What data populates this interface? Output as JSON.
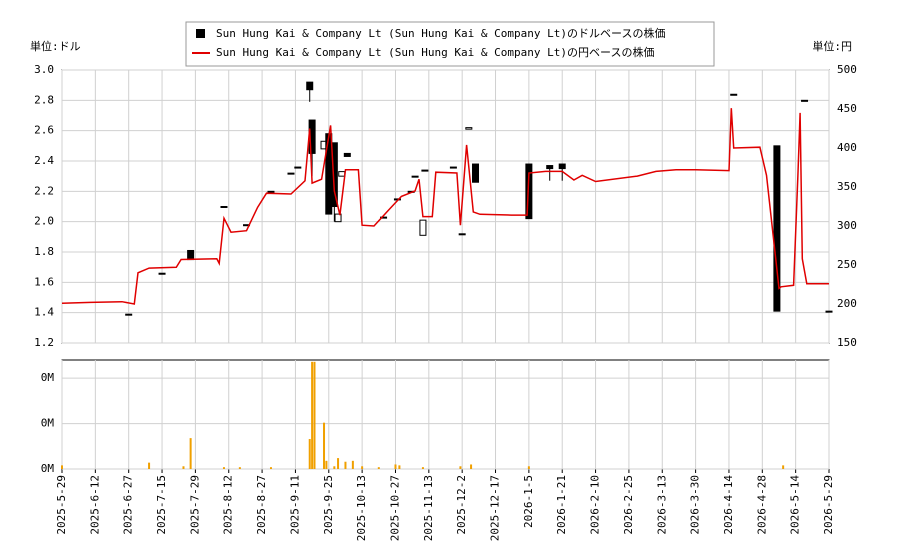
{
  "chart_data": [
    {
      "type": "candlestick",
      "y_label": "単位:ドル",
      "y2_label": "単位:円",
      "grid": true,
      "ylim": [
        1.2,
        3.0
      ],
      "yticks": [
        1.2,
        1.4,
        1.6,
        1.8,
        {
          "value": 2,
          "label": "2.0"
        },
        2.2,
        2.4,
        2.6,
        2.8,
        {
          "value": 3,
          "label": "3.0"
        }
      ],
      "y2lim": [
        150,
        500
      ],
      "y2ticks": [
        150,
        200,
        250,
        300,
        350,
        400,
        450,
        500
      ],
      "series": [
        {
          "name": "Sun Hung Kai & Company Lt (Sun Hung Kai & Company Lt)のドルベースの株価",
          "type": "candlestick",
          "color": "#000000",
          "x": [
            "2025-06-27",
            "2025-07-15",
            "2025-07-27",
            "2025-08-10",
            "2025-08-20",
            "2025-08-31",
            "2025-09-09",
            "2025-09-12",
            "2025-09-17",
            "2025-09-18",
            "2025-09-23",
            "2025-09-25",
            "2025-09-28",
            "2025-09-30",
            "2025-10-02",
            "2025-10-05",
            "2025-10-22",
            "2025-10-28",
            "2025-11-04",
            "2025-11-06",
            "2025-11-10",
            "2025-11-11",
            "2025-11-27",
            "2025-12-02",
            "2025-12-05",
            "2025-12-08",
            "2026-01-05",
            "2026-01-15",
            "2026-01-21",
            "2026-04-16",
            "2026-05-05",
            "2026-05-18",
            "2026-05-29"
          ],
          "open": [
            1.39,
            1.66,
            1.81,
            2.1,
            1.98,
            2.2,
            2.32,
            2.36,
            2.92,
            2.67,
            2.48,
            2.58,
            2.52,
            2.0,
            2.3,
            2.45,
            2.03,
            2.15,
            2.2,
            2.3,
            1.91,
            2.34,
            2.36,
            1.92,
            2.61,
            2.38,
            2.38,
            2.37,
            2.38,
            2.84,
            2.5,
            2.8,
            1.41
          ],
          "high": [
            1.39,
            1.66,
            1.81,
            2.1,
            1.98,
            2.2,
            2.32,
            2.36,
            2.92,
            2.67,
            2.53,
            2.58,
            2.52,
            2.05,
            2.33,
            2.45,
            2.03,
            2.15,
            2.2,
            2.3,
            2.01,
            2.34,
            2.36,
            1.92,
            2.62,
            2.38,
            2.38,
            2.37,
            2.38,
            2.84,
            2.5,
            2.8,
            1.41
          ],
          "low": [
            1.39,
            1.66,
            1.75,
            2.1,
            1.98,
            2.2,
            2.32,
            2.36,
            2.79,
            2.3,
            2.48,
            2.05,
            2.0,
            2.0,
            2.3,
            2.43,
            2.03,
            2.15,
            2.2,
            2.3,
            1.91,
            2.34,
            2.36,
            1.92,
            2.61,
            2.26,
            2.02,
            2.27,
            2.27,
            2.84,
            1.41,
            2.8,
            1.41
          ],
          "close": [
            1.39,
            1.66,
            1.75,
            2.1,
            1.98,
            2.2,
            2.32,
            2.36,
            2.87,
            2.45,
            2.53,
            2.05,
            2.1,
            2.05,
            2.33,
            2.43,
            2.03,
            2.15,
            2.2,
            2.3,
            2.01,
            2.34,
            2.36,
            1.92,
            2.62,
            2.26,
            2.02,
            2.35,
            2.35,
            2.84,
            1.41,
            2.8,
            1.41
          ]
        },
        {
          "name": "Sun Hung Kai & Company Lt (Sun Hung Kai & Company Lt)の円ベースの株価",
          "type": "line",
          "axis": "y2",
          "color": "#e00000",
          "x": [
            "2025-05-29",
            "2025-06-10",
            "2025-06-24",
            "2025-06-30",
            "2025-07-02",
            "2025-07-08",
            "2025-07-21",
            "2025-07-23",
            "2025-08-07",
            "2025-08-08",
            "2025-08-10",
            "2025-08-13",
            "2025-08-20",
            "2025-08-25",
            "2025-08-29",
            "2025-09-09",
            "2025-09-15",
            "2025-09-17",
            "2025-09-18",
            "2025-09-22",
            "2025-09-26",
            "2025-09-28",
            "2025-10-01",
            "2025-10-04",
            "2025-10-11",
            "2025-10-13",
            "2025-10-18",
            "2025-10-24",
            "2025-10-30",
            "2025-11-06",
            "2025-11-08",
            "2025-11-10",
            "2025-11-15",
            "2025-11-17",
            "2025-11-29",
            "2025-12-01",
            "2025-12-04",
            "2025-12-07",
            "2025-12-10",
            "2025-12-26",
            "2026-01-04",
            "2026-01-05",
            "2026-01-13",
            "2026-01-21",
            "2026-01-28",
            "2026-02-02",
            "2026-02-10",
            "2026-03-01",
            "2026-03-10",
            "2026-03-20",
            "2026-03-30",
            "2026-04-14",
            "2026-04-15",
            "2026-04-16",
            "2026-04-27",
            "2026-04-30",
            "2026-05-06",
            "2026-05-07",
            "2026-05-13",
            "2026-05-15",
            "2026-05-16",
            "2026-05-17",
            "2026-05-19",
            "2026-05-29"
          ],
          "values": [
            201,
            202,
            203,
            200,
            240,
            246,
            247,
            257,
            258,
            252,
            310,
            292,
            294,
            324,
            342,
            341,
            358,
            425,
            355,
            360,
            429,
            345,
            314,
            372,
            372,
            301,
            300,
            320,
            338,
            345,
            360,
            312,
            312,
            369,
            368,
            301,
            404,
            318,
            315,
            314,
            314,
            368,
            370,
            370,
            359,
            365,
            357,
            364,
            370,
            372,
            372,
            371,
            451,
            400,
            401,
            365,
            220,
            222,
            224,
            365,
            445,
            258,
            226,
            226
          ]
        }
      ]
    },
    {
      "type": "bar",
      "color": "#f0a000",
      "grid": true,
      "ylim": [
        0,
        0.12
      ],
      "yticks": [
        {
          "value": 0,
          "label": "0M"
        },
        {
          "value": 0.05,
          "label": "0M"
        },
        {
          "value": 0.1,
          "label": "0M"
        }
      ],
      "xticks": [
        "2025-5-29",
        "2025-6-12",
        "2025-6-27",
        "2025-7-15",
        "2025-7-29",
        "2025-8-12",
        "2025-8-27",
        "2025-9-11",
        "2025-9-25",
        "2025-10-13",
        "2025-10-27",
        "2025-11-13",
        "2025-12-2",
        "2025-12-17",
        "2026-1-5",
        "2026-1-21",
        "2026-2-10",
        "2026-2-25",
        "2026-3-13",
        "2026-3-30",
        "2026-4-14",
        "2026-4-28",
        "2026-5-14",
        "2026-5-29"
      ],
      "x": [
        "2025-05-29",
        "2025-07-08",
        "2025-07-24",
        "2025-07-27",
        "2025-08-10",
        "2025-08-17",
        "2025-08-31",
        "2025-09-17",
        "2025-09-18",
        "2025-09-19",
        "2025-09-23",
        "2025-09-24",
        "2025-09-28",
        "2025-09-30",
        "2025-10-04",
        "2025-10-08",
        "2025-10-13",
        "2025-10-20",
        "2025-10-27",
        "2025-10-29",
        "2025-11-10",
        "2025-12-01",
        "2025-12-06",
        "2026-01-05",
        "2026-05-08"
      ],
      "values": [
        0.004,
        0.007,
        0.003,
        0.034,
        0.002,
        0.002,
        0.002,
        0.033,
        0.118,
        0.118,
        0.051,
        0.009,
        0.003,
        0.012,
        0.008,
        0.009,
        0.003,
        0.002,
        0.005,
        0.004,
        0.002,
        0.003,
        0.005,
        0.003,
        0.004
      ]
    }
  ]
}
